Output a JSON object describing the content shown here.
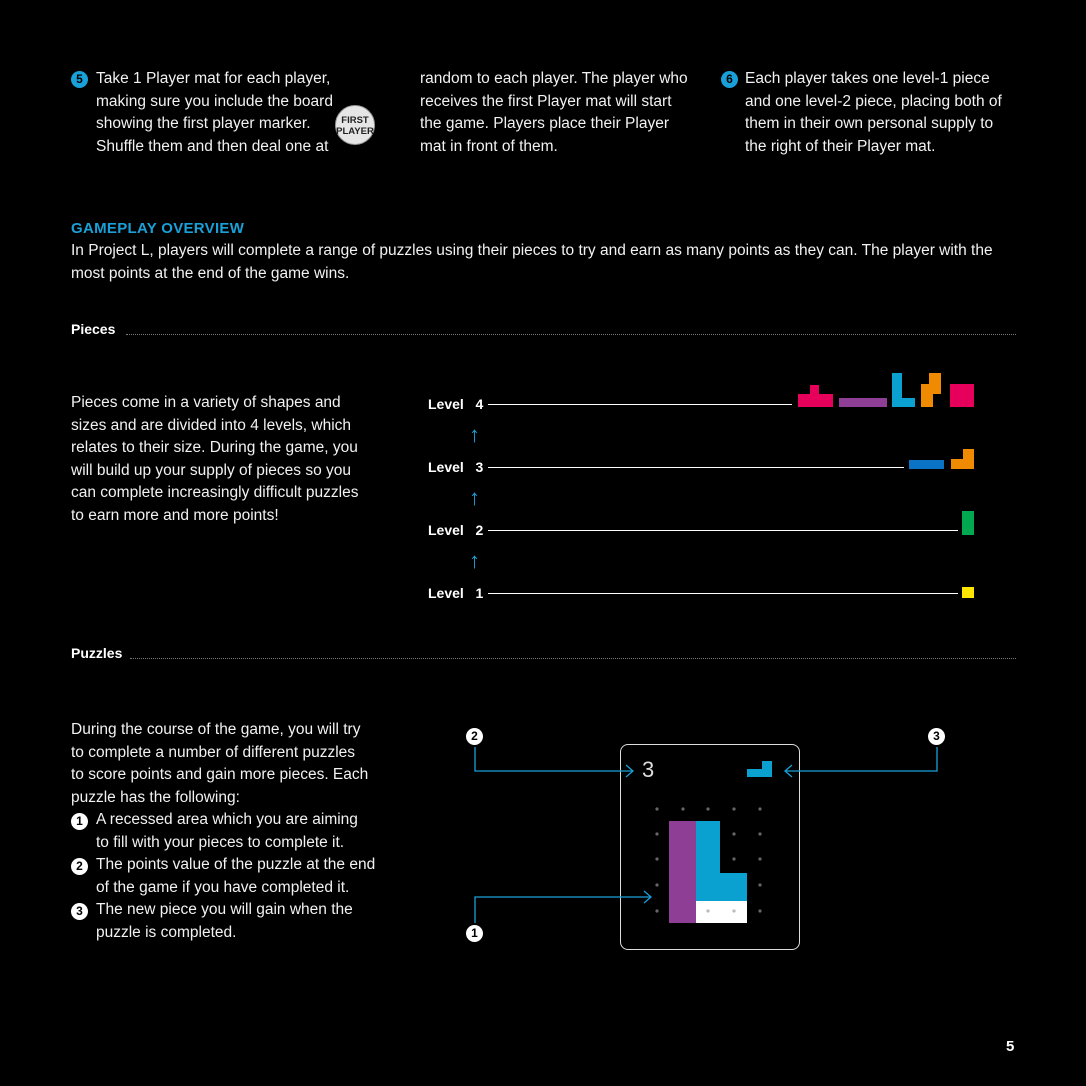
{
  "steps": {
    "step5": {
      "number": "5",
      "lines": [
        "Take 1 Player mat for each player,",
        "making sure you include the board",
        "showing the first player marker.",
        "Shuffle them and then deal one at"
      ],
      "badge_line1": "FIRST",
      "badge_line2": "PLAYER"
    },
    "step5_cont": {
      "lines": [
        "random to each player. The player who",
        "receives the first Player mat will start",
        "the game. Players place their Player",
        "mat in front of them."
      ]
    },
    "step6": {
      "number": "6",
      "lines": [
        "Each player takes one level-1 piece",
        "and one level-2 piece, placing both of",
        "them in their own personal supply to",
        "the right of their Player mat."
      ]
    }
  },
  "overview": {
    "heading": "GAMEPLAY OVERVIEW",
    "lines": [
      "In Project L, players will complete a range of puzzles using their pieces to try and earn as many points as they can. The player with the",
      "most points at the end of the game wins."
    ]
  },
  "pieces": {
    "title": "Pieces",
    "lines": [
      "Pieces come in a variety of shapes and",
      "sizes and are divided into 4 levels, which",
      "relates to their size. During the game, you",
      "will build up your supply of pieces so you",
      "can complete increasingly difficult puzzles",
      "to earn more and more points!"
    ],
    "levels": [
      {
        "label": "Level",
        "num": "4"
      },
      {
        "label": "Level",
        "num": "3"
      },
      {
        "label": "Level",
        "num": "2"
      },
      {
        "label": "Level",
        "num": "1"
      }
    ],
    "arrow_glyph": "↑",
    "colors": {
      "pink": "#e6005c",
      "purple": "#8e3f95",
      "blue": "#0aa0d0",
      "orange": "#f08a00",
      "darkblue": "#0b73c6",
      "green": "#00a84f",
      "yellow": "#ffe600"
    }
  },
  "puzzles": {
    "title": "Puzzles",
    "lines": [
      "During the course of the game, you will try",
      "to complete a number of different puzzles",
      "to score points and gain more pieces. Each",
      "puzzle has the following:"
    ],
    "items": [
      {
        "number": "1",
        "lines": [
          "A recessed area which you are aiming",
          "to fill with your pieces to complete it."
        ]
      },
      {
        "number": "2",
        "lines": [
          "The points value of the puzzle at the end",
          "of the game if you have completed it."
        ]
      },
      {
        "number": "3",
        "lines": [
          "The new piece you will gain when the",
          "puzzle is completed."
        ]
      }
    ],
    "card_points": "3",
    "callouts": [
      "2",
      "3",
      "1"
    ]
  },
  "page_number": "5"
}
